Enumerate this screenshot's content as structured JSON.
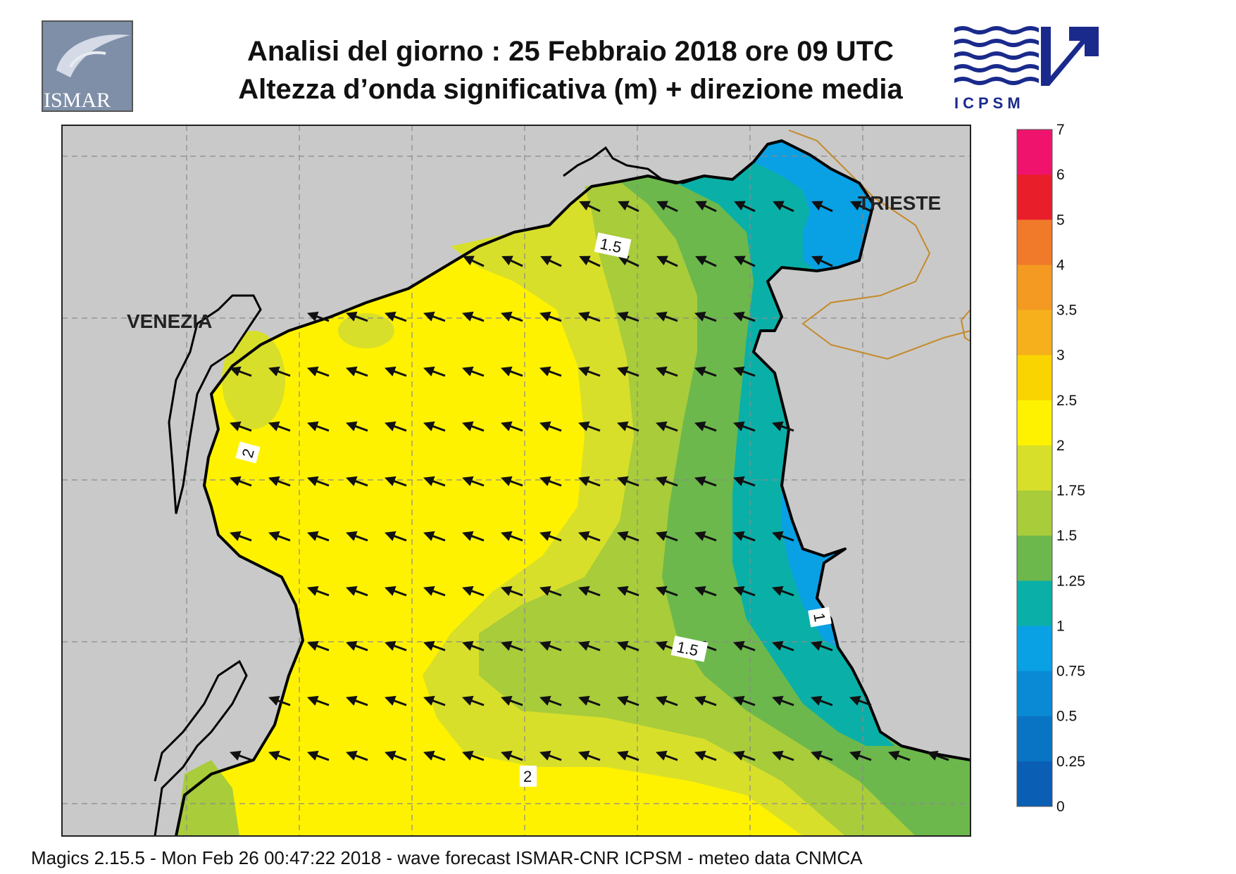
{
  "header": {
    "title_line1": "Analisi del giorno :  25  Febbraio 2018   ore 09 UTC",
    "title_line2": "Altezza d’onda significativa (m) + direzione media"
  },
  "logos": {
    "left": {
      "name": "ISMAR",
      "text": "ISMAR"
    },
    "right": {
      "name": "ICPSM",
      "text": "ICPSM"
    }
  },
  "map": {
    "cities": [
      "VENEZIA",
      "TRIESTE"
    ],
    "contour_labels": [
      "1.5",
      "2",
      "1.5",
      "1",
      "2"
    ],
    "colors": {
      "land": "#c9c9c9",
      "coast": "#000000",
      "grid": "#8a8a8a",
      "border": "#c48a2a",
      "arrow": "#111111"
    }
  },
  "colorbar": {
    "ticks": [
      "7",
      "6",
      "5",
      "4",
      "3.5",
      "3",
      "2.5",
      "2",
      "1.75",
      "1.5",
      "1.25",
      "1",
      "0.75",
      "0.5",
      "0.25",
      "0"
    ],
    "colors": [
      "#f0136e",
      "#e81e2a",
      "#f0792a",
      "#f49a22",
      "#f6b01c",
      "#fad400",
      "#fff200",
      "#d8df2a",
      "#a8cc3a",
      "#6cb84c",
      "#0ab0a8",
      "#0aa0e4",
      "#0a8ad4",
      "#0a74c4",
      "#0a5eb4"
    ]
  },
  "footer": {
    "text": "Magics 2.15.5 - Mon Feb 26 00:47:22 2018 - wave forecast  ISMAR-CNR  ICPSM - meteo data   CNMCA"
  }
}
